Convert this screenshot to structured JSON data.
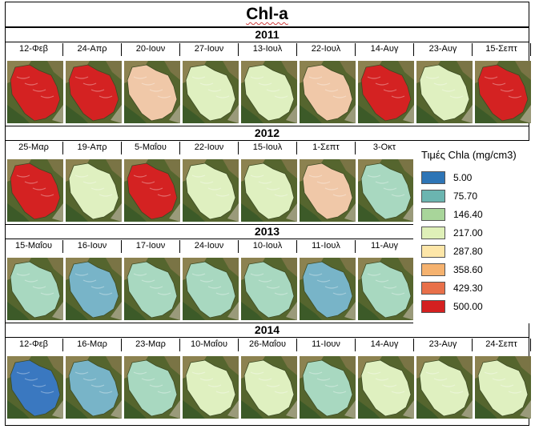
{
  "title": "Chl-a",
  "years": [
    {
      "year": "2011",
      "dates": [
        "12-Φεβ",
        "24-Απρ",
        "20-Ιουν",
        "27-Ιουν",
        "13-Ιουλ",
        "22-Ιουλ",
        "14-Αυγ",
        "23-Αυγ",
        "15-Σεπτ"
      ],
      "levels": [
        "red",
        "red",
        "pale",
        "light",
        "light",
        "pale",
        "red",
        "light",
        "red"
      ]
    },
    {
      "year": "2012",
      "dates": [
        "25-Μαρ",
        "19-Απρ",
        "5-Μαΐου",
        "22-Ιουν",
        "15-Ιουλ",
        "1-Σεπτ",
        "3-Οκτ"
      ],
      "levels": [
        "red",
        "light",
        "red",
        "light",
        "light",
        "pale",
        "cyan"
      ]
    },
    {
      "year": "2013",
      "dates": [
        "15-Μαΐου",
        "16-Ιουν",
        "17-Ιουν",
        "24-Ιουν",
        "10-Ιουλ",
        "11-Ιουλ",
        "11-Αυγ"
      ],
      "levels": [
        "cyan",
        "blue",
        "cyan",
        "cyan",
        "cyan",
        "blue",
        "cyan"
      ]
    },
    {
      "year": "2014",
      "dates": [
        "12-Φεβ",
        "16-Μαρ",
        "23-Μαρ",
        "10-Μαΐου",
        "26-Μαΐου",
        "11-Ιουν",
        "14-Αυγ",
        "23-Αυγ",
        "24-Σεπτ"
      ],
      "levels": [
        "deepblue",
        "blue",
        "cyan",
        "light",
        "light",
        "cyan",
        "light",
        "light",
        "light"
      ]
    }
  ],
  "legend": {
    "title": "Τιμές Chla (mg/cm3)",
    "items": [
      {
        "label": "5.00",
        "color": "#2e75b6"
      },
      {
        "label": "75.70",
        "color": "#6bb5b0"
      },
      {
        "label": "146.40",
        "color": "#a8d59a"
      },
      {
        "label": "217.00",
        "color": "#dff0b8"
      },
      {
        "label": "287.80",
        "color": "#fde6a8"
      },
      {
        "label": "358.60",
        "color": "#f5b26f"
      },
      {
        "label": "429.30",
        "color": "#e8704a"
      },
      {
        "label": "500.00",
        "color": "#d42020"
      }
    ]
  },
  "level_colors": {
    "red": "#d42222",
    "pale": "#f0c8a8",
    "light": "#dff0c0",
    "cyan": "#a8d8c0",
    "blue": "#78b4c8",
    "deepblue": "#3a78c0"
  }
}
